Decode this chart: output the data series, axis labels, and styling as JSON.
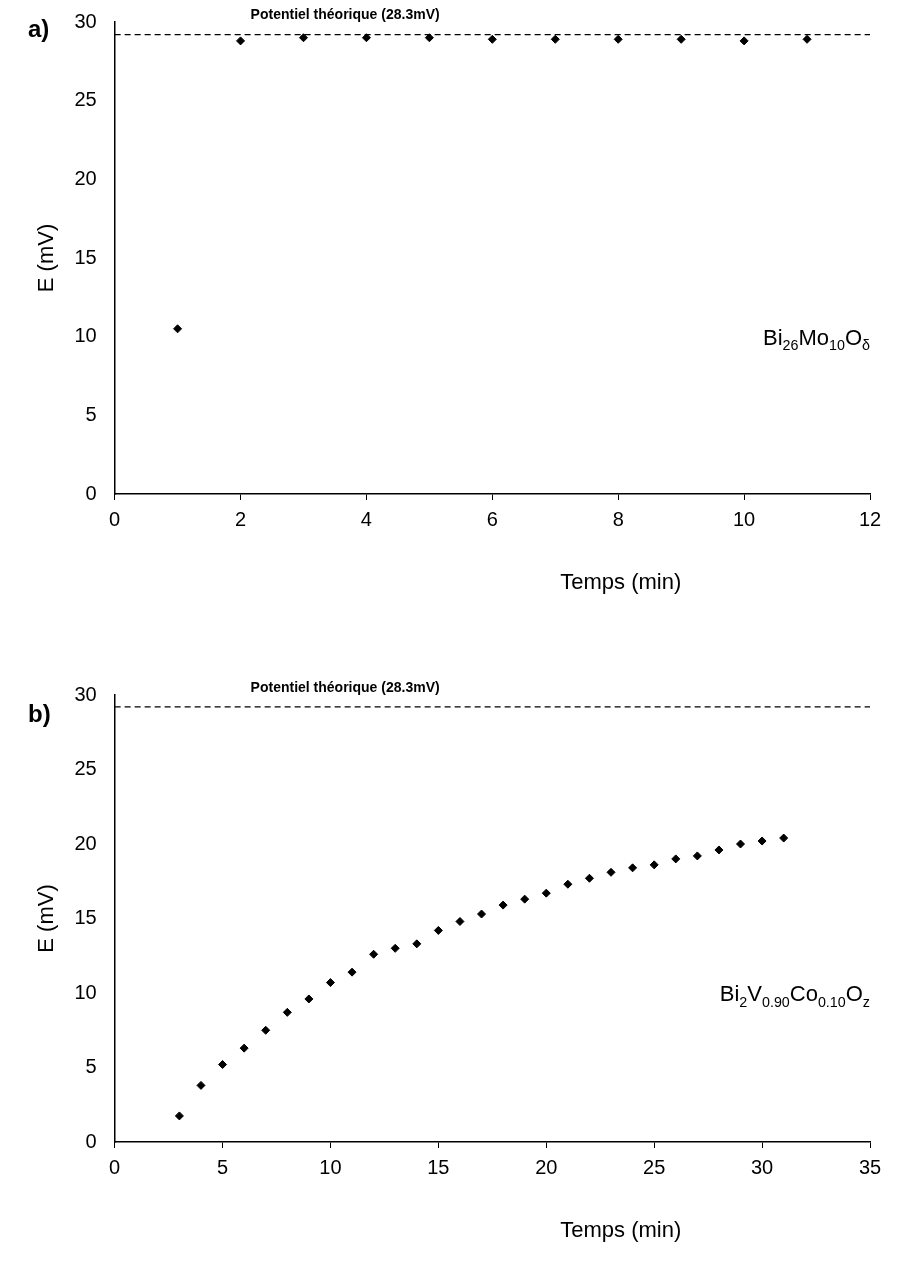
{
  "chart_data": [
    {
      "type": "scatter",
      "title": "a)",
      "xlabel": "Temps (min)",
      "ylabel": "E (mV)",
      "marker": "diamond",
      "grid": false,
      "x": [
        1,
        2,
        3,
        4,
        5,
        6,
        7,
        8,
        9,
        10,
        11
      ],
      "series": [
        {
          "color": "#000000",
          "values": [
            10.5,
            28.8,
            29.0,
            29.0,
            29.0,
            28.9,
            28.9,
            28.9,
            28.9,
            28.8,
            28.9
          ]
        }
      ],
      "xlim": [
        0,
        12
      ],
      "xticks": [
        0,
        2,
        4,
        6,
        8,
        10,
        12
      ],
      "ylim": [
        0,
        30
      ],
      "yticks": [
        0,
        5,
        10,
        15,
        20,
        25,
        30
      ],
      "ref_lines": [
        {
          "axis": "y",
          "value": 29.2,
          "label": "Potentiel théorique (28.3mV)",
          "color": "#000000",
          "line_style": "dashed"
        }
      ],
      "annotations": [
        "Bi$_{26}$Mo$_{10}$O$_{δ}$"
      ]
    },
    {
      "type": "scatter",
      "title": "b)",
      "xlabel": "Temps (min)",
      "ylabel": "E (mV)",
      "marker": "diamond",
      "grid": false,
      "x": [
        3,
        4,
        5,
        6,
        7,
        8,
        9,
        10,
        11,
        12,
        13,
        14,
        15,
        16,
        17,
        18,
        19,
        20,
        21,
        22,
        23,
        24,
        25,
        26,
        27,
        28,
        29,
        30,
        31
      ],
      "series": [
        {
          "color": "#000000",
          "values": [
            1.75,
            3.8,
            5.2,
            6.3,
            7.5,
            8.7,
            9.6,
            10.7,
            11.4,
            12.6,
            13.0,
            13.3,
            14.2,
            14.8,
            15.3,
            15.9,
            16.3,
            16.7,
            17.3,
            17.7,
            18.1,
            18.4,
            18.6,
            19.0,
            19.2,
            19.6,
            20.0,
            20.2,
            20.4
          ]
        }
      ],
      "xlim": [
        0,
        35
      ],
      "xticks": [
        0,
        5,
        10,
        15,
        20,
        25,
        30,
        35
      ],
      "ylim": [
        0,
        30
      ],
      "yticks": [
        0,
        5,
        10,
        15,
        20,
        25,
        30
      ],
      "ref_lines": [
        {
          "axis": "y",
          "value": 29.2,
          "label": "Potentiel théorique (28.3mV)",
          "color": "#000000",
          "line_style": "dashed"
        }
      ],
      "annotations": [
        "Bi$_{2}$V$_{0.90}$Co$_{0.10}$O$_{z}$"
      ]
    }
  ]
}
